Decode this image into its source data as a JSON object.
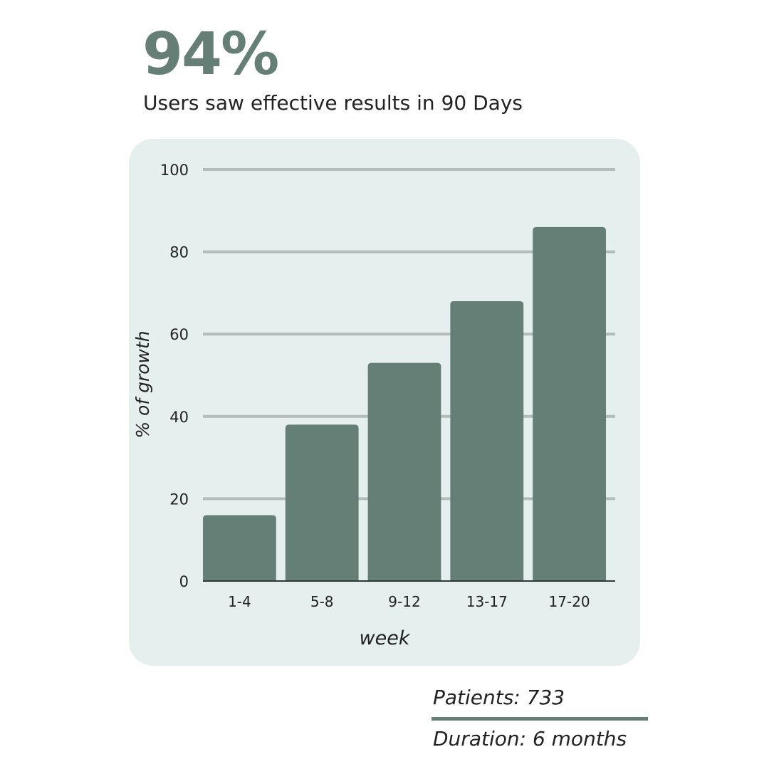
{
  "header": {
    "headline": "94%",
    "subtitle": "Users saw effective results in 90 Days"
  },
  "footer": {
    "patients": "Patients: 733",
    "duration": "Duration: 6 months"
  },
  "colors": {
    "bar": "#667f76",
    "panel": "#e5efed",
    "grid": "#b2bcb8"
  },
  "chart_data": {
    "type": "bar",
    "categories": [
      "1-4",
      "5-8",
      "9-12",
      "13-17",
      "17-20"
    ],
    "values": [
      16,
      38,
      53,
      68,
      86
    ],
    "xlabel": "week",
    "ylabel": "% of growth",
    "ylim": [
      0,
      100
    ],
    "yticks": [
      0,
      20,
      40,
      60,
      80,
      100
    ],
    "grid": true
  }
}
